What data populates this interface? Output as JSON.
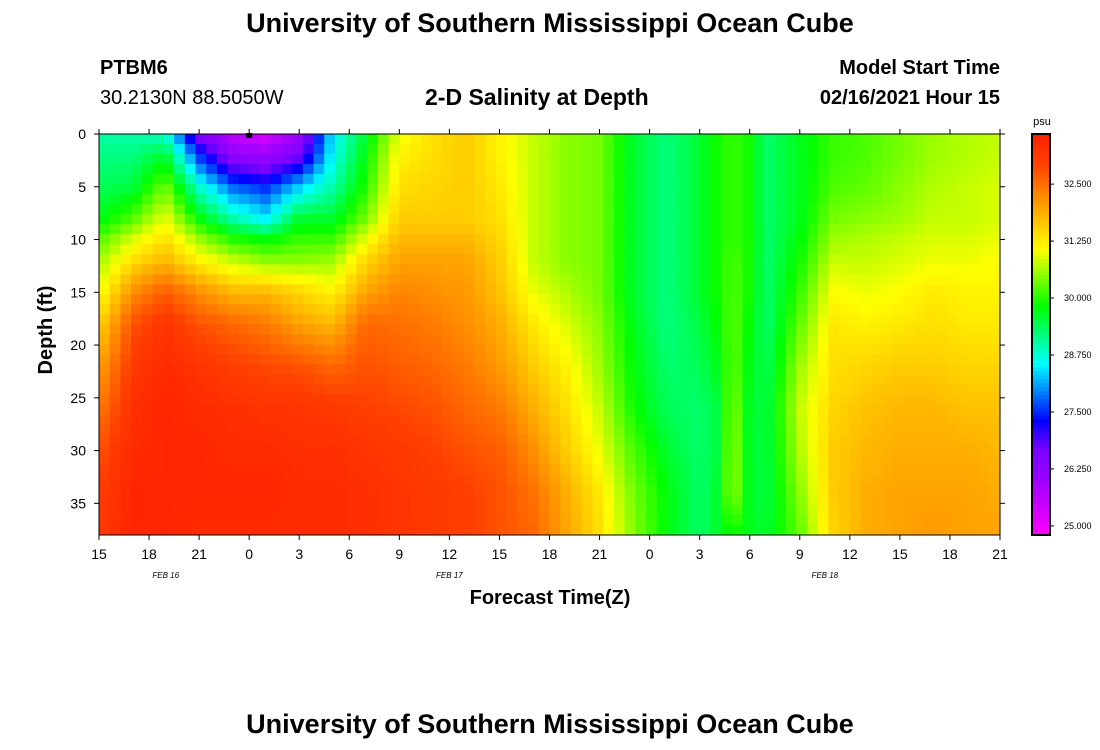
{
  "header": {
    "title": "University of Southern Mississippi Ocean Cube",
    "station": "PTBM6",
    "coordinates": "30.2130N 88.5050W",
    "subtitle": "2-D Salinity at Depth",
    "model_start_label": "Model Start Time",
    "model_start_value": "02/16/2021 Hour 15"
  },
  "footer": {
    "title": "University of Southern Mississippi Ocean Cube"
  },
  "chart_data": {
    "type": "heatmap",
    "title": "2-D Salinity at Depth",
    "xlabel": "Forecast Time(Z)",
    "ylabel": "Depth (ft)",
    "x_unit": "hours since model start (02/16/2021 15Z)",
    "xlim": [
      0,
      54
    ],
    "ylim": [
      0,
      38
    ],
    "x_tick_hours": [
      0,
      3,
      6,
      9,
      12,
      15,
      18,
      21,
      24,
      27,
      30,
      33,
      36,
      39,
      42,
      45,
      48,
      51,
      54
    ],
    "x_tick_labels": [
      "15",
      "18",
      "21",
      "0",
      "3",
      "6",
      "9",
      "12",
      "15",
      "18",
      "21",
      "0",
      "3",
      "6",
      "9",
      "12",
      "15",
      "18",
      "21"
    ],
    "date_labels": [
      {
        "hour": 4,
        "text": "FEB 16"
      },
      {
        "hour": 21,
        "text": "FEB 17"
      },
      {
        "hour": 43.5,
        "text": "FEB 18"
      }
    ],
    "y_ticks": [
      0,
      5,
      10,
      15,
      20,
      25,
      30,
      35
    ],
    "colorbar": {
      "unit": "psu",
      "min": 24.8,
      "max": 33.6,
      "ticks": [
        25.0,
        26.25,
        27.5,
        28.75,
        30.0,
        31.25,
        32.5
      ],
      "tick_labels": [
        "25.000",
        "26.250",
        "27.500",
        "28.750",
        "30.000",
        "31.250",
        "32.500"
      ],
      "colors": [
        "#ff00ff",
        "#cc00ff",
        "#9900ff",
        "#7a00ff",
        "#0000ff",
        "#0080ff",
        "#00ffff",
        "#00ff80",
        "#00ff00",
        "#80ff00",
        "#ffff00",
        "#ffc000",
        "#ff8000",
        "#ff4000",
        "#ff2000"
      ]
    },
    "marker": {
      "hour": 9,
      "depth": 0
    },
    "salinity_profiles": {
      "depths_ft": [
        0,
        2,
        5,
        8,
        10,
        12,
        15,
        18,
        22,
        26,
        30,
        34,
        38
      ],
      "columns": [
        {
          "hour": 0,
          "values": [
            29.0,
            29.2,
            29.4,
            29.7,
            30.2,
            30.6,
            31.0,
            31.5,
            32.0,
            32.4,
            32.8,
            33.0,
            33.1
          ]
        },
        {
          "hour": 2,
          "values": [
            29.0,
            29.2,
            29.5,
            30.2,
            30.9,
            31.4,
            32.2,
            32.8,
            33.1,
            33.3,
            33.4,
            33.5,
            33.5
          ]
        },
        {
          "hour": 4,
          "values": [
            28.8,
            29.6,
            30.4,
            31.0,
            31.4,
            31.8,
            32.7,
            33.2,
            33.4,
            33.5,
            33.5,
            33.5,
            33.5
          ]
        },
        {
          "hour": 6,
          "values": [
            26.5,
            27.5,
            28.8,
            29.8,
            30.6,
            31.2,
            32.2,
            32.8,
            33.2,
            33.4,
            33.5,
            33.5,
            33.4
          ]
        },
        {
          "hour": 8,
          "values": [
            25.6,
            26.2,
            27.8,
            29.0,
            30.0,
            30.8,
            31.8,
            32.6,
            33.0,
            33.3,
            33.4,
            33.5,
            33.4
          ]
        },
        {
          "hour": 10,
          "values": [
            25.3,
            26.0,
            27.5,
            28.5,
            29.8,
            30.5,
            31.8,
            32.4,
            32.9,
            33.2,
            33.4,
            33.5,
            33.4
          ]
        },
        {
          "hour": 12,
          "values": [
            26.0,
            26.6,
            28.3,
            29.6,
            30.1,
            30.5,
            31.5,
            32.0,
            32.8,
            33.2,
            33.3,
            33.4,
            33.4
          ]
        },
        {
          "hour": 14,
          "values": [
            28.5,
            28.6,
            29.0,
            29.6,
            30.1,
            30.6,
            31.2,
            31.8,
            32.6,
            33.1,
            33.3,
            33.4,
            33.4
          ]
        },
        {
          "hour": 16,
          "values": [
            29.6,
            29.8,
            30.0,
            30.4,
            31.0,
            31.5,
            32.0,
            32.6,
            32.8,
            33.0,
            33.2,
            33.3,
            33.3
          ]
        },
        {
          "hour": 18,
          "values": [
            31.0,
            31.2,
            31.4,
            31.6,
            31.8,
            32.0,
            32.3,
            32.5,
            32.7,
            32.9,
            33.1,
            33.2,
            33.2
          ]
        },
        {
          "hour": 20,
          "values": [
            31.4,
            31.4,
            31.5,
            31.6,
            31.8,
            32.0,
            32.2,
            32.4,
            32.6,
            32.8,
            33.0,
            33.1,
            33.1
          ]
        },
        {
          "hour": 22,
          "values": [
            31.6,
            31.6,
            31.6,
            31.6,
            31.8,
            32.0,
            32.1,
            32.2,
            32.4,
            32.6,
            32.8,
            33.0,
            33.0
          ]
        },
        {
          "hour": 24,
          "values": [
            31.2,
            31.2,
            31.3,
            31.4,
            31.5,
            31.6,
            31.7,
            31.9,
            32.1,
            32.4,
            32.7,
            32.8,
            32.8
          ]
        },
        {
          "hour": 26,
          "values": [
            30.8,
            30.8,
            30.8,
            30.8,
            30.8,
            30.8,
            31.0,
            31.3,
            31.6,
            31.9,
            32.2,
            32.5,
            32.6
          ]
        },
        {
          "hour": 28,
          "values": [
            30.5,
            30.5,
            30.5,
            30.5,
            30.5,
            30.5,
            30.7,
            30.9,
            31.2,
            31.4,
            31.6,
            31.9,
            32.0
          ]
        },
        {
          "hour": 30,
          "values": [
            30.4,
            30.4,
            30.4,
            30.4,
            30.4,
            30.4,
            30.4,
            30.5,
            30.6,
            30.8,
            31.0,
            31.3,
            31.4
          ]
        },
        {
          "hour": 32,
          "values": [
            29.6,
            29.6,
            29.6,
            29.6,
            29.6,
            29.6,
            29.6,
            29.7,
            29.8,
            29.9,
            30.2,
            30.4,
            30.5
          ]
        },
        {
          "hour": 34,
          "values": [
            29.2,
            29.2,
            29.2,
            29.2,
            29.2,
            29.2,
            29.2,
            29.2,
            29.3,
            29.4,
            29.6,
            29.8,
            29.8
          ]
        },
        {
          "hour": 36,
          "values": [
            29.6,
            29.6,
            29.6,
            29.6,
            29.6,
            29.6,
            29.6,
            29.5,
            29.4,
            29.3,
            29.3,
            29.3,
            29.3
          ]
        },
        {
          "hour": 37,
          "values": [
            29.9,
            29.9,
            29.9,
            29.9,
            29.9,
            29.9,
            29.9,
            29.8,
            29.7,
            29.5,
            29.5,
            29.6,
            29.6
          ]
        },
        {
          "hour": 38,
          "values": [
            30.1,
            30.1,
            30.1,
            30.1,
            30.1,
            30.2,
            30.2,
            30.3,
            30.3,
            30.5,
            30.6,
            30.6,
            29.9
          ]
        },
        {
          "hour": 39,
          "values": [
            29.9,
            29.9,
            29.9,
            29.9,
            29.9,
            29.9,
            29.9,
            29.8,
            29.7,
            29.6,
            29.6,
            29.6,
            29.7
          ]
        },
        {
          "hour": 40,
          "values": [
            29.3,
            29.3,
            29.3,
            29.3,
            29.3,
            29.3,
            29.3,
            29.3,
            29.4,
            29.5,
            29.5,
            29.5,
            29.6
          ]
        },
        {
          "hour": 42,
          "values": [
            29.7,
            29.7,
            29.7,
            29.7,
            29.8,
            29.9,
            30.1,
            30.3,
            30.6,
            30.8,
            30.7,
            30.5,
            30.3
          ]
        },
        {
          "hour": 44,
          "values": [
            30.1,
            30.1,
            30.2,
            30.4,
            30.6,
            30.8,
            31.1,
            31.3,
            31.4,
            31.5,
            31.6,
            31.6,
            31.5
          ]
        },
        {
          "hour": 46,
          "values": [
            30.2,
            30.2,
            30.3,
            30.5,
            30.7,
            30.8,
            31.0,
            31.2,
            31.5,
            31.7,
            31.8,
            31.9,
            31.9
          ]
        },
        {
          "hour": 48,
          "values": [
            30.4,
            30.4,
            30.5,
            30.6,
            30.8,
            30.9,
            31.1,
            31.3,
            31.6,
            31.8,
            31.9,
            32.0,
            32.0
          ]
        },
        {
          "hour": 50,
          "values": [
            30.6,
            30.6,
            30.7,
            30.8,
            30.9,
            31.0,
            31.3,
            31.4,
            31.6,
            31.8,
            31.9,
            32.0,
            32.1
          ]
        },
        {
          "hour": 52,
          "values": [
            30.7,
            30.7,
            30.8,
            30.8,
            30.9,
            31.0,
            31.2,
            31.3,
            31.5,
            31.7,
            31.9,
            32.0,
            32.0
          ]
        },
        {
          "hour": 54,
          "values": [
            30.8,
            30.8,
            30.9,
            30.9,
            31.0,
            31.1,
            31.2,
            31.3,
            31.5,
            31.7,
            31.8,
            31.9,
            32.0
          ]
        }
      ]
    }
  }
}
